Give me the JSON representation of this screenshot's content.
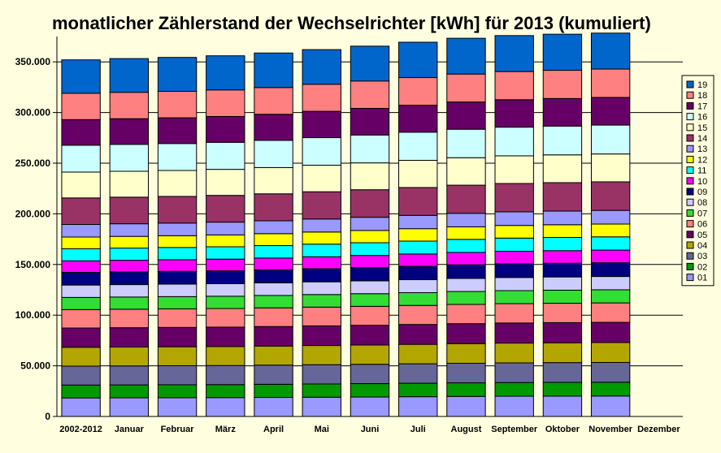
{
  "chart_data": {
    "type": "bar",
    "stacked": true,
    "title": "monatlicher Zählerstand der Wechselrichter [kWh] für 2013 (kumuliert)",
    "xlabel": "",
    "ylabel": "",
    "ylim": [
      0,
      375000
    ],
    "yticks": [
      0,
      50000,
      100000,
      150000,
      200000,
      250000,
      300000,
      350000
    ],
    "ytick_labels": [
      "0",
      "50.000",
      "100.000",
      "150.000",
      "200.000",
      "250.000",
      "300.000",
      "350.000"
    ],
    "grid": true,
    "legend_position": "right",
    "categories": [
      "2002-2012",
      "Januar",
      "Februar",
      "März",
      "April",
      "Mai",
      "Juni",
      "Juli",
      "August",
      "September",
      "Oktober",
      "November",
      "Dezember"
    ],
    "series": [
      {
        "name": "01",
        "color": "#9999ff",
        "values": [
          18300,
          18400,
          18500,
          18600,
          18800,
          19000,
          19200,
          19500,
          19800,
          20000,
          20100,
          20200,
          null
        ]
      },
      {
        "name": "02",
        "color": "#009900",
        "values": [
          12700,
          12750,
          12800,
          12850,
          12950,
          13050,
          13200,
          13300,
          13400,
          13500,
          13600,
          13600,
          null
        ]
      },
      {
        "name": "03",
        "color": "#666699",
        "values": [
          18700,
          18750,
          18800,
          18850,
          18950,
          19050,
          19100,
          19200,
          19300,
          19400,
          19450,
          19500,
          null
        ]
      },
      {
        "name": "04",
        "color": "#b3a600",
        "values": [
          18600,
          18650,
          18700,
          18750,
          18800,
          18950,
          19000,
          19200,
          19400,
          19550,
          19600,
          19700,
          null
        ]
      },
      {
        "name": "05",
        "color": "#660066",
        "values": [
          19000,
          19050,
          19100,
          19150,
          19250,
          19350,
          19500,
          19600,
          19700,
          19800,
          19850,
          19900,
          null
        ]
      },
      {
        "name": "06",
        "color": "#ff8080",
        "values": [
          18200,
          18250,
          18300,
          18350,
          18450,
          18550,
          18700,
          18800,
          19000,
          19100,
          19150,
          19200,
          null
        ]
      },
      {
        "name": "07",
        "color": "#33dd33",
        "values": [
          12000,
          12050,
          12100,
          12150,
          12250,
          12400,
          12500,
          12600,
          12750,
          12850,
          12900,
          12950,
          null
        ]
      },
      {
        "name": "08",
        "color": "#ccccff",
        "values": [
          12200,
          12250,
          12300,
          12350,
          12450,
          12550,
          12650,
          12800,
          12900,
          13000,
          13050,
          13100,
          null
        ]
      },
      {
        "name": "09",
        "color": "#000080",
        "values": [
          12500,
          12550,
          12600,
          12700,
          12800,
          12950,
          13100,
          13250,
          13400,
          13500,
          13550,
          13600,
          null
        ]
      },
      {
        "name": "10",
        "color": "#ff00ff",
        "values": [
          11400,
          11450,
          11500,
          11550,
          11650,
          11800,
          11950,
          12100,
          12250,
          12350,
          12400,
          12450,
          null
        ]
      },
      {
        "name": "11",
        "color": "#00ffff",
        "values": [
          12000,
          12050,
          12100,
          12200,
          12300,
          12450,
          12600,
          12750,
          12900,
          13000,
          13050,
          13100,
          null
        ]
      },
      {
        "name": "12",
        "color": "#ffff00",
        "values": [
          11500,
          11550,
          11600,
          11700,
          11800,
          11950,
          12100,
          12250,
          12400,
          12500,
          12550,
          12600,
          null
        ]
      },
      {
        "name": "13",
        "color": "#9999ff",
        "values": [
          12400,
          12450,
          12500,
          12600,
          12700,
          12850,
          13000,
          13150,
          13300,
          13400,
          13450,
          13500,
          null
        ]
      },
      {
        "name": "14",
        "color": "#993366",
        "values": [
          26200,
          26250,
          26300,
          26400,
          26600,
          26900,
          27200,
          27500,
          27800,
          28000,
          28100,
          28200,
          null
        ]
      },
      {
        "name": "15",
        "color": "#ffffcc",
        "values": [
          25500,
          25550,
          25600,
          25700,
          25900,
          26200,
          26500,
          26800,
          27100,
          27300,
          27400,
          27500,
          null
        ]
      },
      {
        "name": "16",
        "color": "#ccffff",
        "values": [
          26500,
          26550,
          26600,
          26700,
          26900,
          27200,
          27500,
          27800,
          28100,
          28300,
          28400,
          28500,
          null
        ]
      },
      {
        "name": "17",
        "color": "#660066",
        "values": [
          25300,
          25350,
          25400,
          25500,
          25700,
          26000,
          26300,
          26600,
          26900,
          27100,
          27200,
          27300,
          null
        ]
      },
      {
        "name": "18",
        "color": "#ff8080",
        "values": [
          26000,
          26050,
          26100,
          26200,
          26400,
          26700,
          27000,
          27300,
          27600,
          27800,
          27900,
          28000,
          null
        ]
      },
      {
        "name": "19",
        "color": "#0066cc",
        "values": [
          33000,
          33300,
          33500,
          33700,
          34100,
          34200,
          34400,
          34900,
          35300,
          35500,
          35600,
          35500,
          null
        ]
      }
    ]
  }
}
